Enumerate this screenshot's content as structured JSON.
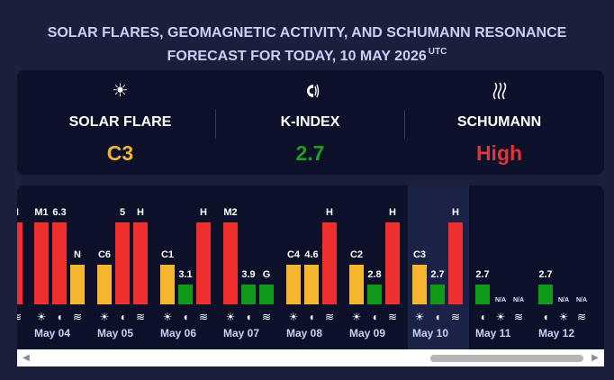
{
  "header": {
    "title_line1": "SOLAR FLARES, GEOMAGNETIC ACTIVITY, AND SCHUMANN RESONANCE",
    "title_line2": "FORECAST FOR TODAY, 10 MAY 2026",
    "title_sup": "UTC"
  },
  "summary": {
    "solar": {
      "label": "SOLAR FLARE",
      "value": "C3",
      "color": "#f0b43c",
      "icon": "sun-icon"
    },
    "kindex": {
      "label": "K-INDEX",
      "value": "2.7",
      "color": "#1fa01f",
      "icon": "magnet-icon"
    },
    "schumann": {
      "label": "SCHUMANN",
      "value": "High",
      "color": "#e8323a",
      "icon": "waves-icon"
    }
  },
  "colors": {
    "red": "#f0302f",
    "orange": "#f6b62f",
    "green": "#119a19"
  },
  "chart_data": {
    "type": "bar",
    "title": "",
    "categories": [
      "May 04",
      "May 05",
      "May 06",
      "May 07",
      "May 08",
      "May 09",
      "May 10",
      "May 11",
      "May 12"
    ],
    "today": "May 10",
    "series": [
      {
        "values": [
          "M1",
          "C6",
          "C1",
          "M2",
          "C4",
          "C2",
          "C3",
          "N/A",
          "N/A"
        ]
      },
      {
        "values": [
          "6.3",
          "5",
          "3.1",
          "3.9",
          "4.6",
          "2.8",
          "2.7",
          "2.7",
          "2.7"
        ]
      },
      {
        "values": [
          "N",
          "H",
          "H",
          "G",
          "H",
          "H",
          "H",
          "N/A",
          "N/A"
        ]
      }
    ],
    "bars": [
      {
        "label": "M1",
        "level": 0.89,
        "color": "red"
      },
      {
        "label": "6.3",
        "level": 0.89,
        "color": "red"
      },
      {
        "label": "N",
        "level": 0.43,
        "color": "orange"
      },
      {
        "label": "C6",
        "level": 0.43,
        "color": "orange"
      },
      {
        "label": "5",
        "level": 0.89,
        "color": "red"
      },
      {
        "label": "H",
        "level": 0.89,
        "color": "red"
      },
      {
        "label": "C1",
        "level": 0.43,
        "color": "orange"
      },
      {
        "label": "3.1",
        "level": 0.22,
        "color": "green"
      },
      {
        "label": "H",
        "level": 0.89,
        "color": "red"
      },
      {
        "label": "M2",
        "level": 0.89,
        "color": "red"
      },
      {
        "label": "3.9",
        "level": 0.22,
        "color": "green"
      },
      {
        "label": "G",
        "level": 0.22,
        "color": "green"
      },
      {
        "label": "C4",
        "level": 0.43,
        "color": "orange"
      },
      {
        "label": "4.6",
        "level": 0.43,
        "color": "orange"
      },
      {
        "label": "H",
        "level": 0.89,
        "color": "red"
      },
      {
        "label": "C2",
        "level": 0.43,
        "color": "orange"
      },
      {
        "label": "2.8",
        "level": 0.22,
        "color": "green"
      },
      {
        "label": "H",
        "level": 0.89,
        "color": "red"
      },
      {
        "label": "C3",
        "level": 0.43,
        "color": "orange"
      },
      {
        "label": "2.7",
        "level": 0.22,
        "color": "green"
      },
      {
        "label": "H",
        "level": 0.89,
        "color": "red"
      },
      {
        "label": "2.7",
        "level": 0.22,
        "color": "green"
      },
      {
        "label": "2.7",
        "level": 0.22,
        "color": "green"
      }
    ],
    "na_labels": [
      "N/A",
      "N/A",
      "N/A",
      "N/A"
    ],
    "partial_left": {
      "label": "H",
      "color": "red"
    }
  },
  "icons": {
    "sun": "☀",
    "magnet": "◖",
    "waves": "≋"
  },
  "scrollbar": {
    "left_arrow": "◀",
    "right_arrow": "▶"
  }
}
